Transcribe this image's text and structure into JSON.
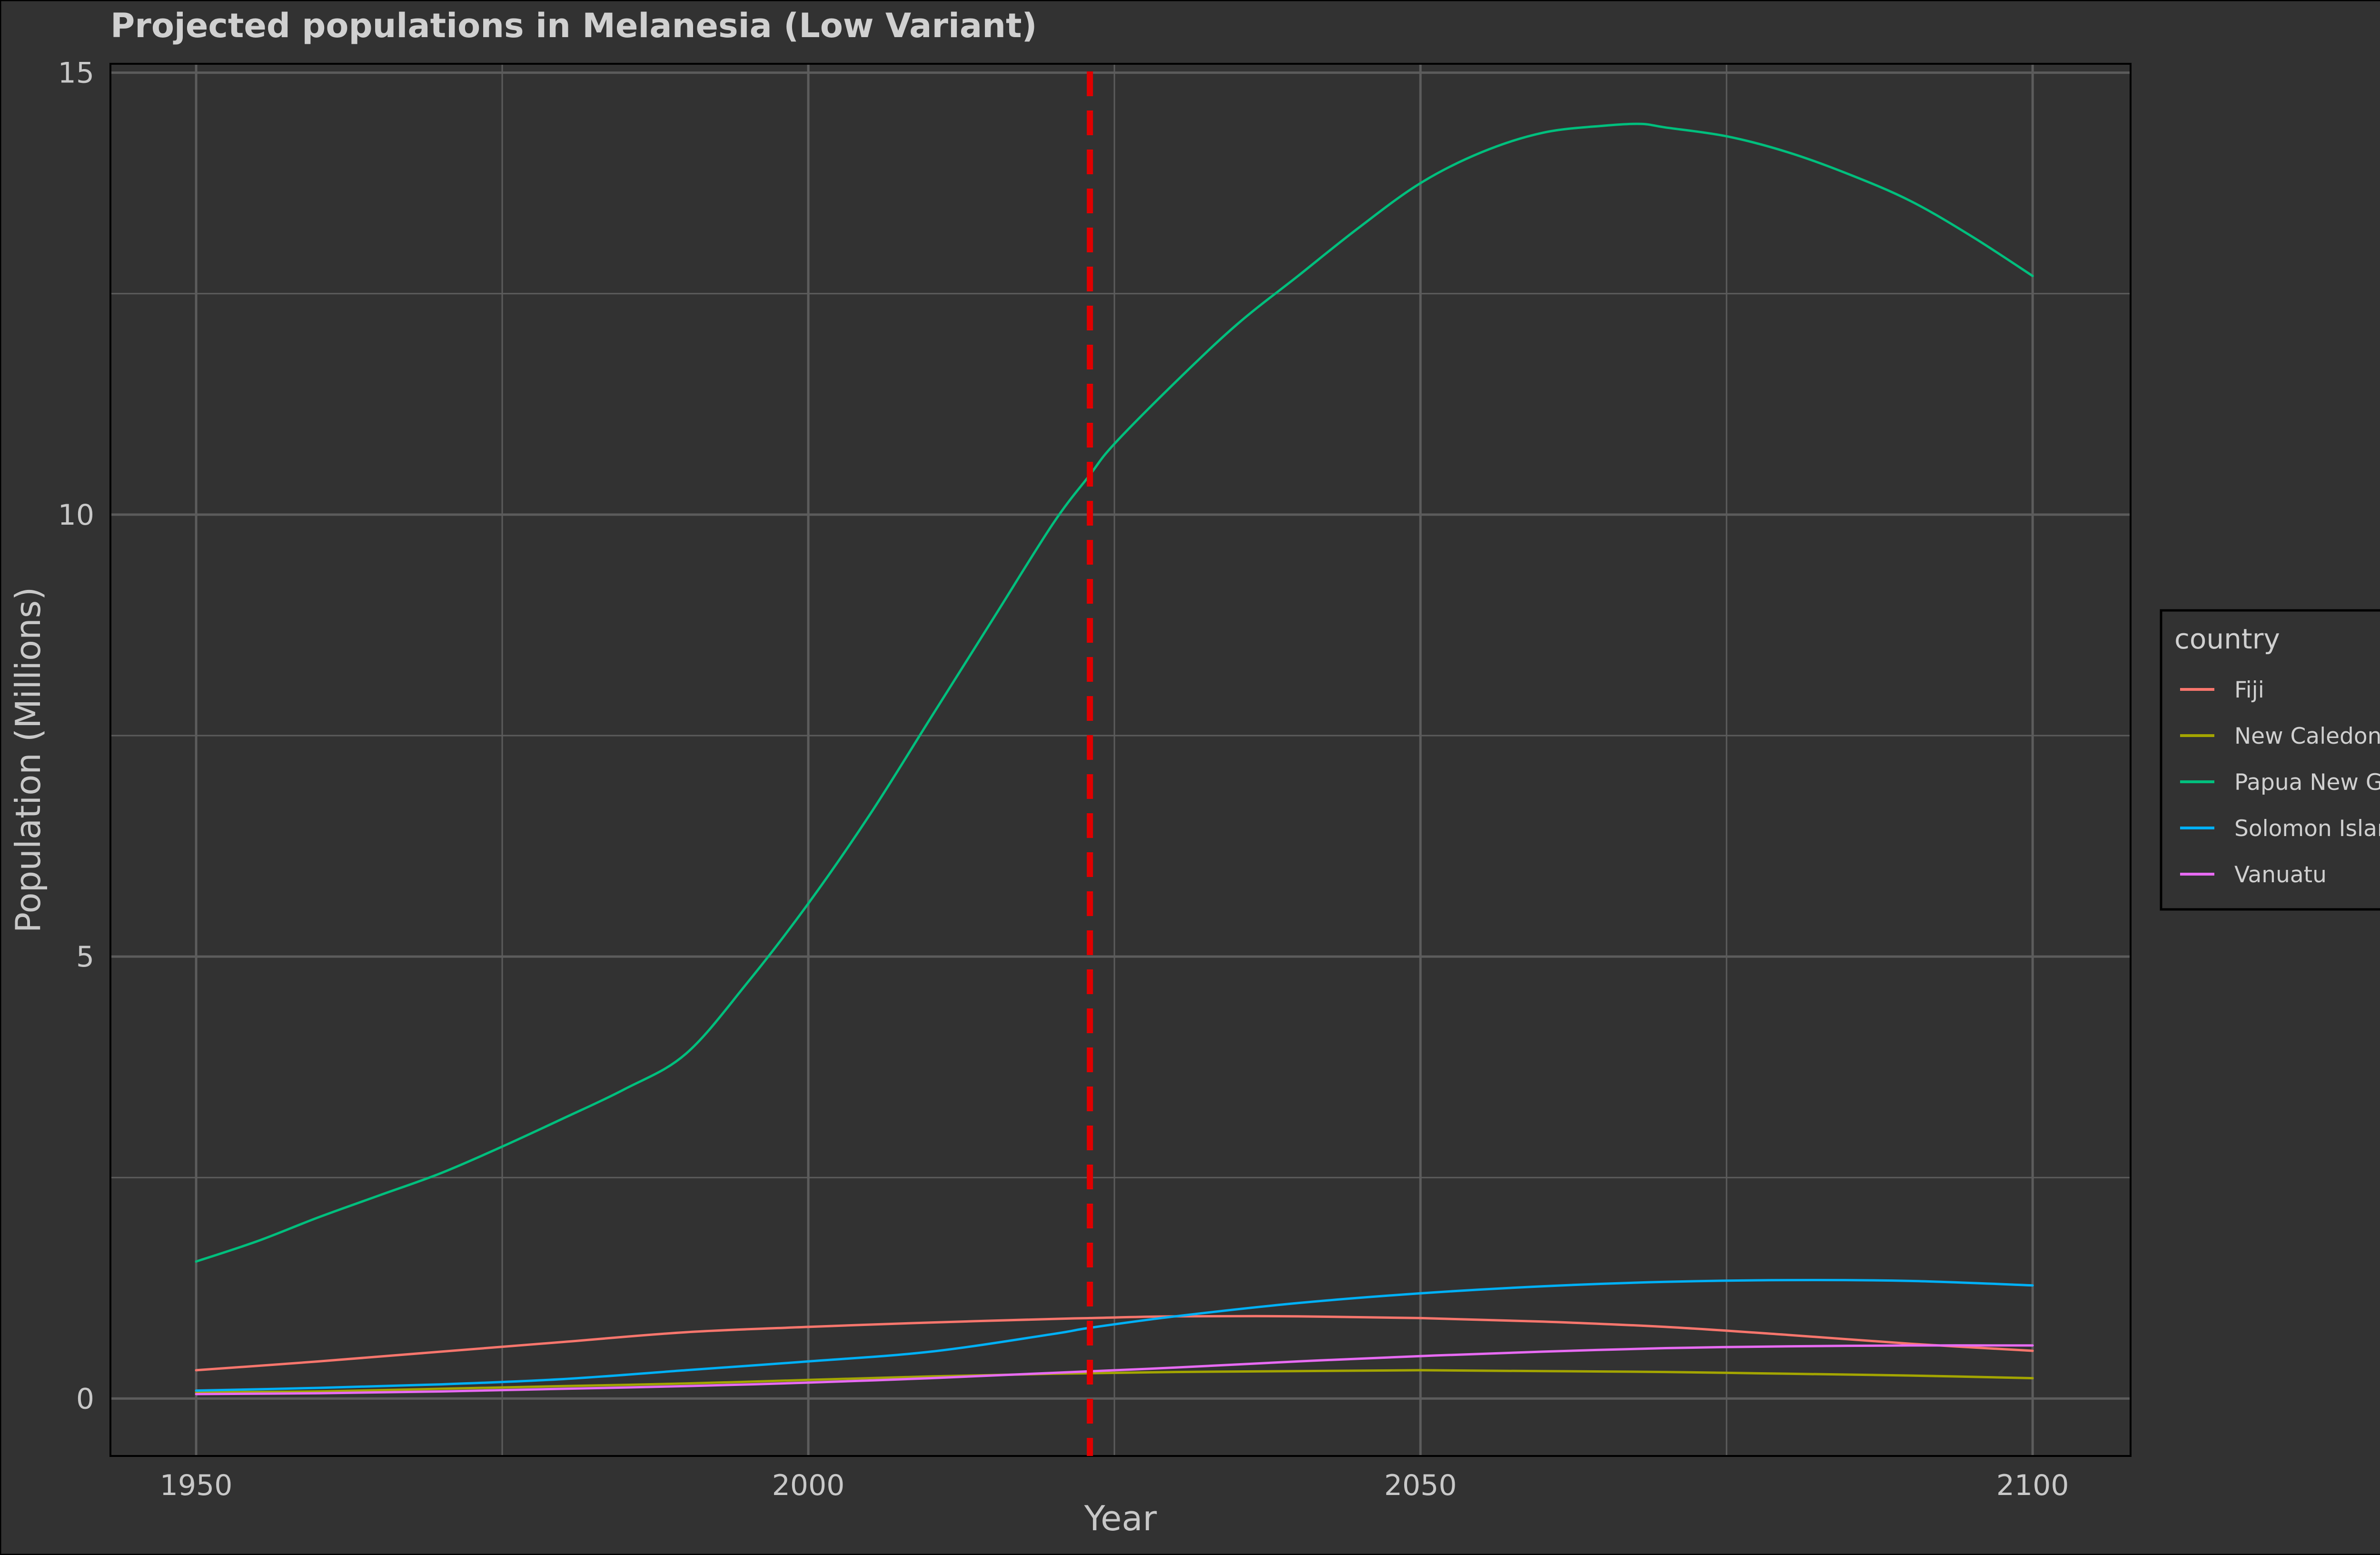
{
  "chart_data": {
    "type": "line",
    "title": "Projected populations in Melanesia (Low Variant)",
    "xlabel": "Year",
    "ylabel": "Population (Millions)",
    "xlim": [
      1943,
      2108
    ],
    "ylim": [
      -0.65,
      15.1
    ],
    "x_ticks": [
      1950,
      2000,
      2050,
      2100
    ],
    "y_ticks": [
      0,
      5,
      10,
      15
    ],
    "grid": true,
    "background": "#323232",
    "grid_color": "#5c5c5c",
    "reference_line": {
      "x": 2023,
      "color": "#e00000",
      "style": "dashed"
    },
    "legend": {
      "title": "country",
      "position": "right"
    },
    "series": [
      {
        "name": "Fiji",
        "color": "#F8766D",
        "x": [
          1950,
          1960,
          1970,
          1980,
          1990,
          2000,
          2010,
          2020,
          2023,
          2030,
          2040,
          2050,
          2060,
          2070,
          2080,
          2090,
          2100
        ],
        "y": [
          0.32,
          0.42,
          0.53,
          0.64,
          0.75,
          0.81,
          0.86,
          0.9,
          0.91,
          0.93,
          0.93,
          0.91,
          0.87,
          0.81,
          0.72,
          0.62,
          0.54
        ]
      },
      {
        "name": "New Caledonia",
        "color": "#A3A500",
        "x": [
          1950,
          1960,
          1970,
          1980,
          1990,
          2000,
          2010,
          2020,
          2030,
          2040,
          2050,
          2060,
          2070,
          2080,
          2090,
          2100
        ],
        "y": [
          0.07,
          0.08,
          0.11,
          0.14,
          0.17,
          0.21,
          0.25,
          0.28,
          0.3,
          0.31,
          0.32,
          0.31,
          0.3,
          0.28,
          0.26,
          0.23
        ]
      },
      {
        "name": "Papua New Guinea",
        "color": "#00BF7D",
        "x": [
          1950,
          1955,
          1960,
          1965,
          1970,
          1975,
          1980,
          1985,
          1990,
          1995,
          2000,
          2005,
          2010,
          2015,
          2020,
          2023,
          2025,
          2030,
          2035,
          2040,
          2045,
          2050,
          2055,
          2060,
          2065,
          2068,
          2070,
          2075,
          2080,
          2085,
          2090,
          2095,
          2100
        ],
        "y": [
          1.55,
          1.78,
          2.05,
          2.3,
          2.55,
          2.85,
          3.17,
          3.5,
          3.9,
          4.7,
          5.6,
          6.6,
          7.7,
          8.8,
          9.9,
          10.45,
          10.8,
          11.5,
          12.15,
          12.7,
          13.25,
          13.75,
          14.1,
          14.32,
          14.4,
          14.42,
          14.38,
          14.28,
          14.1,
          13.85,
          13.55,
          13.15,
          12.7
        ]
      },
      {
        "name": "Solomon Islands",
        "color": "#00B0F6",
        "x": [
          1950,
          1960,
          1970,
          1980,
          1990,
          2000,
          2010,
          2020,
          2023,
          2030,
          2040,
          2050,
          2060,
          2070,
          2080,
          2090,
          2100
        ],
        "y": [
          0.09,
          0.12,
          0.16,
          0.22,
          0.32,
          0.42,
          0.53,
          0.73,
          0.8,
          0.93,
          1.08,
          1.19,
          1.27,
          1.32,
          1.34,
          1.33,
          1.28
        ]
      },
      {
        "name": "Vanuatu",
        "color": "#E76BF3",
        "x": [
          1950,
          1960,
          1970,
          1980,
          1990,
          2000,
          2010,
          2020,
          2030,
          2040,
          2050,
          2060,
          2070,
          2080,
          2090,
          2100
        ],
        "y": [
          0.05,
          0.06,
          0.08,
          0.11,
          0.14,
          0.18,
          0.23,
          0.29,
          0.35,
          0.42,
          0.48,
          0.53,
          0.57,
          0.59,
          0.6,
          0.6
        ]
      }
    ]
  }
}
